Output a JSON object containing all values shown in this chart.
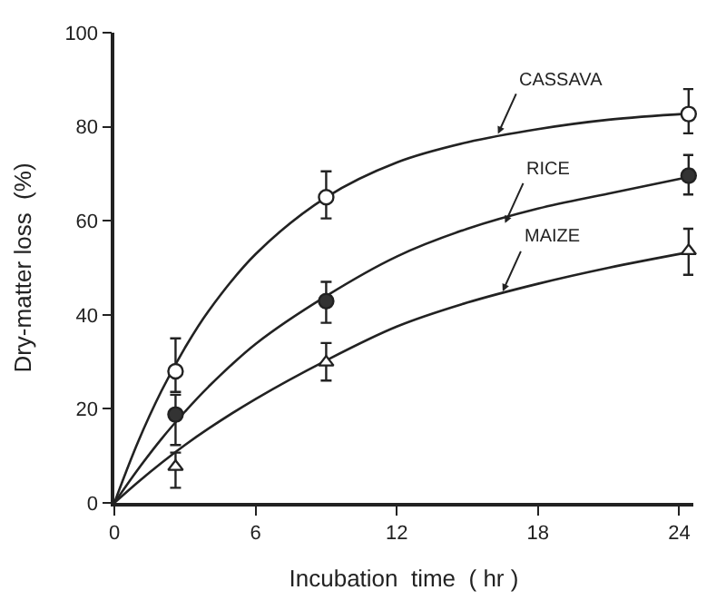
{
  "chart_data": {
    "type": "scatter",
    "xlabel": "Incubation  time  ( hr )",
    "ylabel": "Dry-matter loss  (%)",
    "xlim": [
      0,
      24.6
    ],
    "xticks": [
      0,
      6,
      12,
      18,
      24
    ],
    "ylim": [
      0,
      100
    ],
    "yticks": [
      0,
      20,
      40,
      60,
      80,
      100
    ],
    "series": [
      {
        "type": "line",
        "color": "#222222",
        "marker": "none",
        "x": [
          0,
          1,
          2,
          3,
          4,
          6,
          9,
          12,
          15,
          18,
          21,
          24.4
        ],
        "values": [
          0,
          12.9,
          23.8,
          33.0,
          40.8,
          52.9,
          65.0,
          72.4,
          76.7,
          79.5,
          81.5,
          82.8
        ]
      },
      {
        "type": "line",
        "color": "#222222",
        "marker": "none",
        "x": [
          0,
          1,
          2,
          3,
          4,
          6,
          9,
          12,
          15,
          18,
          21,
          24.4
        ],
        "values": [
          0,
          7.1,
          13.6,
          19.4,
          24.7,
          33.8,
          44.0,
          52.4,
          58.3,
          62.6,
          65.8,
          69.3
        ]
      },
      {
        "type": "line",
        "color": "#222222",
        "marker": "none",
        "x": [
          0,
          1,
          2,
          3,
          4,
          6,
          9,
          12,
          15,
          18,
          21,
          24.4
        ],
        "values": [
          0,
          4.4,
          8.5,
          12.3,
          15.8,
          22.1,
          30.3,
          37.5,
          42.6,
          46.6,
          50.0,
          53.3
        ]
      },
      {
        "color": "#ffffff",
        "marker": "circle",
        "x": [
          2.6,
          9,
          24.4
        ],
        "values": [
          28,
          65,
          82.7
        ],
        "errors": [
          [
            23.6,
            35
          ],
          [
            60.5,
            70.5
          ],
          [
            78.6,
            88
          ]
        ]
      },
      {
        "color": "#333333",
        "marker": "circle",
        "x": [
          2.6,
          9,
          24.4
        ],
        "values": [
          18.8,
          42.9,
          69.6
        ],
        "errors": [
          [
            12.3,
            23
          ],
          [
            38.3,
            47
          ],
          [
            65.6,
            74
          ]
        ]
      },
      {
        "color": "#ffffff",
        "marker": "triangle",
        "x": [
          2.6,
          9,
          24.4
        ],
        "values": [
          7.7,
          29.9,
          53.6
        ],
        "errors": [
          [
            3.2,
            10.7
          ],
          [
            26,
            34
          ],
          [
            48.5,
            58.3
          ]
        ]
      }
    ],
    "annotations": [
      {
        "text": "CASSAVA",
        "x": 16.3,
        "y": 78.5
      },
      {
        "text": "RICE",
        "x": 16.6,
        "y": 59.5
      },
      {
        "text": "MAIZE",
        "x": 16.5,
        "y": 45
      }
    ]
  }
}
